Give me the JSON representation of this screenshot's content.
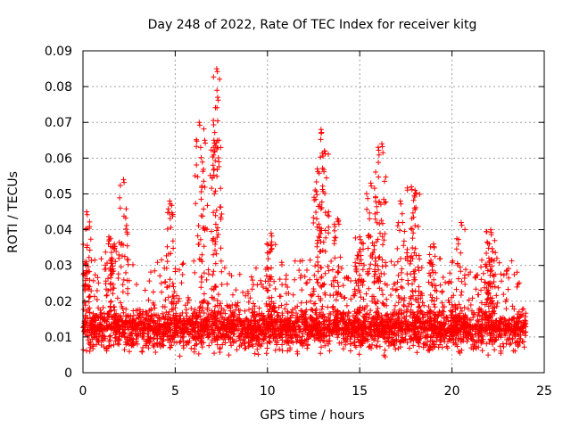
{
  "chart_data": {
    "type": "scatter",
    "title": "Day 248 of 2022, Rate Of TEC Index for receiver kitg",
    "xlabel": "GPS time / hours",
    "ylabel": "ROTI / TECUs",
    "xlim": [
      0,
      25
    ],
    "ylim": [
      0,
      0.09
    ],
    "grid": true,
    "x_ticks": [
      0,
      5,
      10,
      15,
      20,
      25
    ],
    "x_tick_labels": [
      "0",
      "5",
      "10",
      "15",
      "20",
      "25"
    ],
    "y_ticks": [
      0,
      0.01,
      0.02,
      0.03,
      0.04,
      0.05,
      0.06,
      0.07,
      0.08,
      0.09
    ],
    "y_tick_labels": [
      "0",
      "0.01",
      "0.02",
      "0.03",
      "0.04",
      "0.05",
      "0.06",
      "0.07",
      "0.08",
      "0.09"
    ],
    "marker": "+",
    "color": "#ff0000",
    "series": [
      {
        "name": "ROTI",
        "x_range": [
          0,
          24
        ],
        "baseline_band": [
          0.003,
          0.016
        ],
        "peaks": [
          {
            "x": 0.2,
            "y": 0.045
          },
          {
            "x": 0.1,
            "y": 0.031
          },
          {
            "x": 1.4,
            "y": 0.038
          },
          {
            "x": 1.7,
            "y": 0.036
          },
          {
            "x": 2.2,
            "y": 0.054
          },
          {
            "x": 4.7,
            "y": 0.048
          },
          {
            "x": 6.3,
            "y": 0.07
          },
          {
            "x": 6.6,
            "y": 0.065
          },
          {
            "x": 7.1,
            "y": 0.065
          },
          {
            "x": 7.25,
            "y": 0.085
          },
          {
            "x": 7.3,
            "y": 0.077
          },
          {
            "x": 10.2,
            "y": 0.039
          },
          {
            "x": 12.7,
            "y": 0.057
          },
          {
            "x": 12.9,
            "y": 0.068
          },
          {
            "x": 13.1,
            "y": 0.062
          },
          {
            "x": 13.8,
            "y": 0.043
          },
          {
            "x": 15.0,
            "y": 0.038
          },
          {
            "x": 15.6,
            "y": 0.053
          },
          {
            "x": 16.0,
            "y": 0.063
          },
          {
            "x": 16.2,
            "y": 0.064
          },
          {
            "x": 17.2,
            "y": 0.048
          },
          {
            "x": 17.8,
            "y": 0.052
          },
          {
            "x": 18.0,
            "y": 0.051
          },
          {
            "x": 19.0,
            "y": 0.036
          },
          {
            "x": 20.5,
            "y": 0.042
          },
          {
            "x": 22.1,
            "y": 0.04
          },
          {
            "x": 22.0,
            "y": 0.032
          }
        ]
      }
    ]
  }
}
